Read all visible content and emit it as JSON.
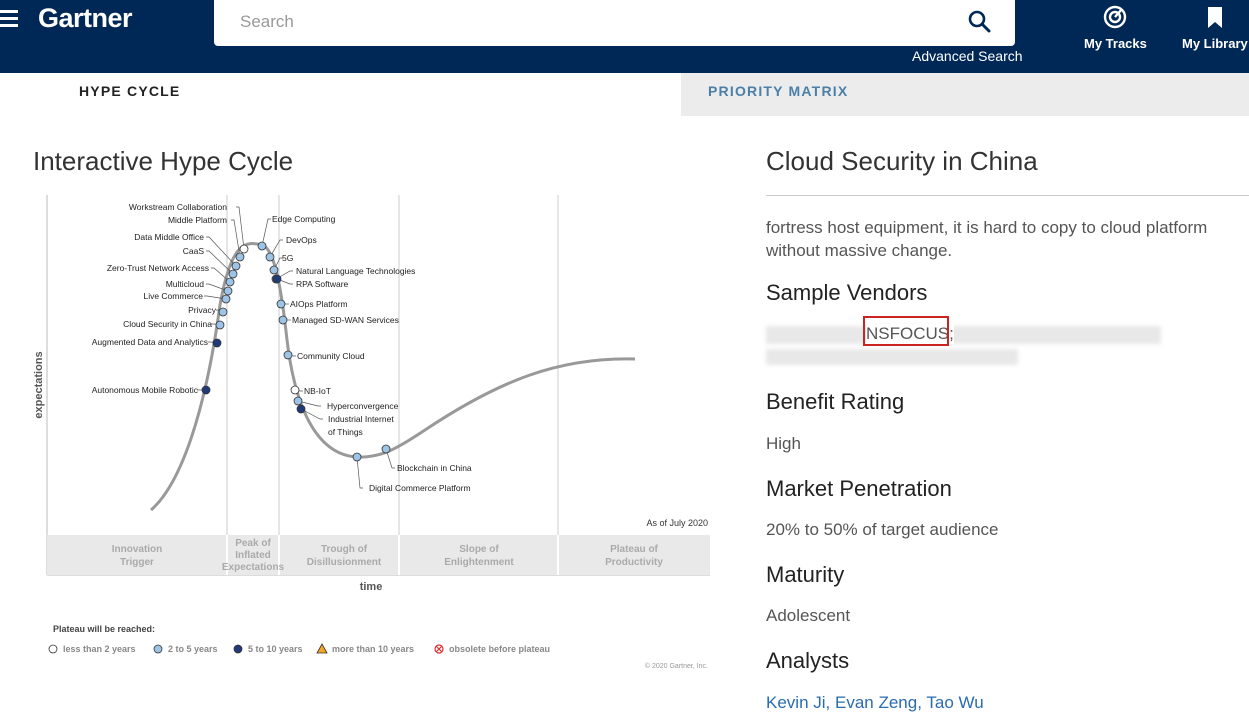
{
  "header": {
    "logo": "Gartner",
    "search_placeholder": "Search",
    "advanced_search": "Advanced Search",
    "my_tracks": "My Tracks",
    "my_library": "My Library"
  },
  "tabs": {
    "hype": "HYPE CYCLE",
    "priority": "PRIORITY MATRIX"
  },
  "left": {
    "title": "Interactive Hype Cycle",
    "chart": {
      "ylabel": "expectations",
      "xlabel": "time",
      "as_of": "As of July 2020",
      "copyright": "© 2020 Gartner, Inc.",
      "phases": [
        "Innovation Trigger",
        "Peak of Inflated Expectations",
        "Trough of Disillusionment",
        "Slope of Enlightenment",
        "Plateau of Productivity"
      ],
      "legend_title": "Plateau will be reached:",
      "legend": [
        {
          "label": "less than 2 years",
          "color": "#ffffff"
        },
        {
          "label": "2 to 5 years",
          "color": "#9dc3e6"
        },
        {
          "label": "5 to 10 years",
          "color": "#1f3b7a"
        },
        {
          "label": "more than 10 years",
          "color": "#f5a623"
        },
        {
          "label": "obsolete before plateau",
          "color": "#e03030"
        }
      ],
      "technologies": [
        {
          "name": "Workstream Collaboration",
          "plateau": "less than 2 years"
        },
        {
          "name": "Middle Platform",
          "plateau": "2 to 5 years"
        },
        {
          "name": "Data Middle Office",
          "plateau": "2 to 5 years"
        },
        {
          "name": "CaaS",
          "plateau": "2 to 5 years"
        },
        {
          "name": "Zero-Trust Network Access",
          "plateau": "2 to 5 years"
        },
        {
          "name": "Multicloud",
          "plateau": "2 to 5 years"
        },
        {
          "name": "Live Commerce",
          "plateau": "2 to 5 years"
        },
        {
          "name": "Privacy",
          "plateau": "2 to 5 years"
        },
        {
          "name": "Cloud Security in China",
          "plateau": "2 to 5 years"
        },
        {
          "name": "Augmented Data and Analytics",
          "plateau": "5 to 10 years"
        },
        {
          "name": "Autonomous Mobile Robotic",
          "plateau": "5 to 10 years"
        },
        {
          "name": "Edge Computing",
          "plateau": "2 to 5 years"
        },
        {
          "name": "DevOps",
          "plateau": "2 to 5 years"
        },
        {
          "name": "5G",
          "plateau": "2 to 5 years"
        },
        {
          "name": "Natural Language Technologies",
          "plateau": "2 to 5 years"
        },
        {
          "name": "RPA Software",
          "plateau": "5 to 10 years"
        },
        {
          "name": "AIOps Platform",
          "plateau": "2 to 5 years"
        },
        {
          "name": "Managed SD-WAN Services",
          "plateau": "2 to 5 years"
        },
        {
          "name": "Community Cloud",
          "plateau": "2 to 5 years"
        },
        {
          "name": "NB-IoT",
          "plateau": "less than 2 years"
        },
        {
          "name": "Hyperconvergence",
          "plateau": "2 to 5 years"
        },
        {
          "name": "Industrial Internet of Things",
          "plateau": "5 to 10 years"
        },
        {
          "name": "Blockchain in China",
          "plateau": "2 to 5 years"
        },
        {
          "name": "Digital Commerce Platform",
          "plateau": "2 to 5 years"
        }
      ]
    }
  },
  "right": {
    "title": "Cloud Security in China",
    "clipped_text": "fortress host equipment, it is hard to copy to cloud platform without massive change.",
    "sample_vendors_h": "Sample Vendors",
    "vendor_visible": "NSFOCUS;",
    "benefit_h": "Benefit Rating",
    "benefit": "High",
    "market_h": "Market Penetration",
    "market": "20% to 50% of target audience",
    "maturity_h": "Maturity",
    "maturity": "Adolescent",
    "analysts_h": "Analysts",
    "analysts": [
      "Kevin Ji",
      "Evan Zeng",
      "Tao Wu"
    ]
  }
}
